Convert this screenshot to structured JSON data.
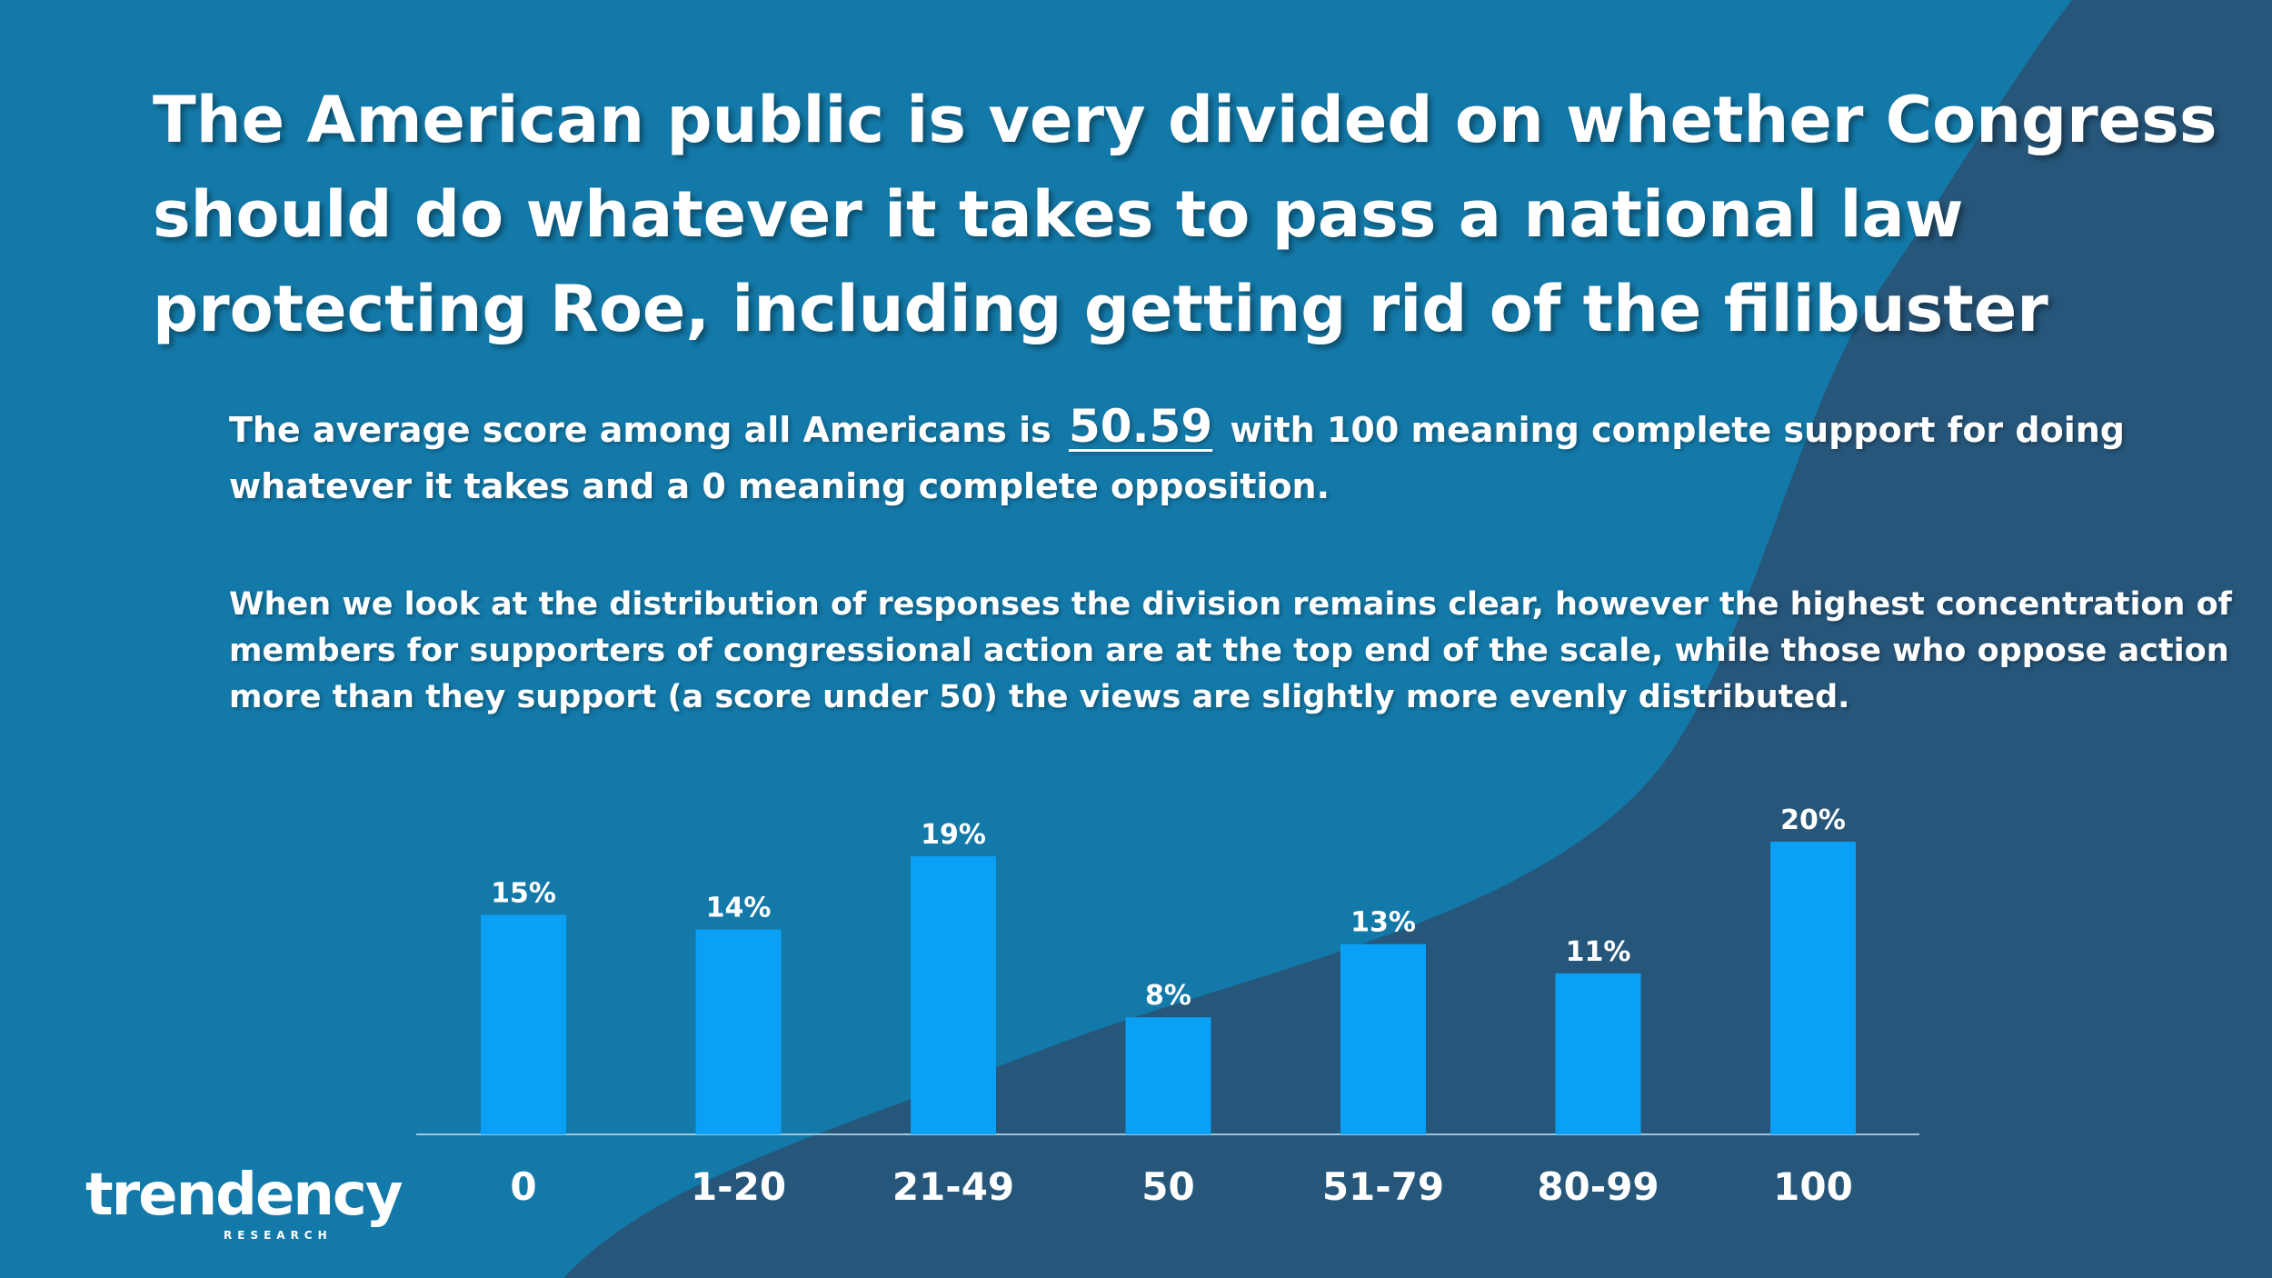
{
  "title": {
    "lines": [
      "The American public is very divided on whether Congress",
      "should do whatever it takes to pass a national law",
      "protecting Roe, including getting rid of the filibuster"
    ]
  },
  "paragraph1": {
    "prefix": "The average score among all Americans is",
    "score": "50.59",
    "suffix": "with 100 meaning complete support for doing",
    "line2": "whatever it takes and a 0 meaning complete opposition."
  },
  "paragraph2": {
    "lines": [
      "When we look at the distribution of responses the division remains clear, however the highest concentration of",
      "members for supporters of congressional action are at the top end of the scale, while those who oppose action",
      "more than they support (a score under 50) the views are slightly more evenly distributed."
    ]
  },
  "logo": {
    "word": "trendency",
    "sub": "RESEARCH"
  },
  "colors": {
    "background": "#1379a8",
    "shape": "#26567a",
    "bar": "#0aa0f5",
    "axis": "#9fc6da"
  },
  "chart_data": {
    "type": "bar",
    "categories": [
      "0",
      "1-20",
      "21-49",
      "50",
      "51-79",
      "80-99",
      "100"
    ],
    "values": [
      15,
      14,
      19,
      8,
      13,
      11,
      20
    ],
    "value_labels": [
      "15%",
      "14%",
      "19%",
      "8%",
      "13%",
      "11%",
      "20%"
    ],
    "title": "",
    "xlabel": "",
    "ylabel": "",
    "ylim": [
      0,
      20
    ],
    "grid": false,
    "legend": "none"
  }
}
